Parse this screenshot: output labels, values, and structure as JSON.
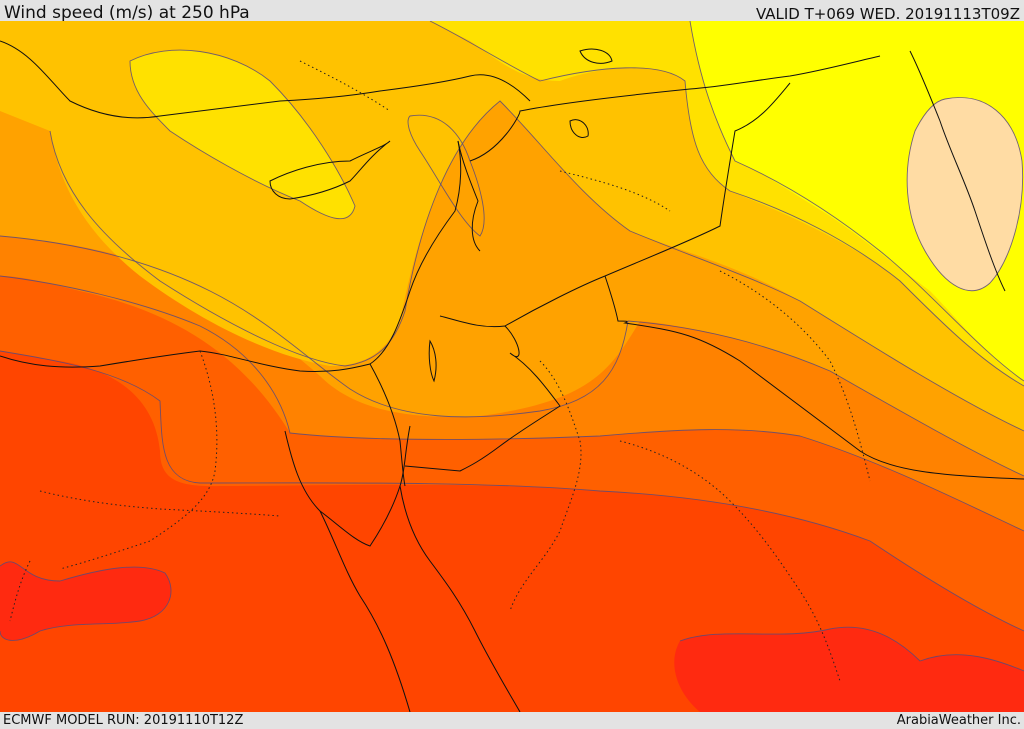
{
  "header": {
    "title": "Wind speed (m/s) at 250 hPa",
    "valid": "VALID T+069 WED. 20191113T09Z"
  },
  "footer": {
    "model_run": "ECMWF MODEL RUN: 20191110T12Z",
    "credit": "ArabiaWeather Inc."
  },
  "palette": {
    "band_20_25": "#ffff00",
    "band_25_30": "#ffe100",
    "band_30_35": "#ffc200",
    "band_35_40": "#ffa200",
    "band_40_45": "#ff8200",
    "band_45_50": "#ff6000",
    "band_50_55": "#ff4500",
    "band_55_60": "#ff2a10",
    "low_15_20": "#ffdca4"
  }
}
